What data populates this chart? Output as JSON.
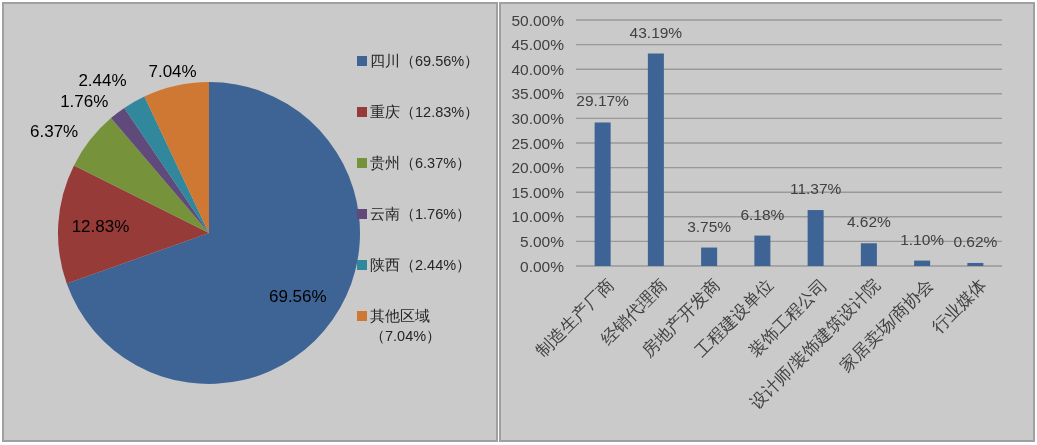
{
  "chart_data": [
    {
      "type": "pie",
      "categories": [
        "四川（69.56%）",
        "重庆（12.83%）",
        "贵州（6.37%）",
        "云南（1.76%）",
        "陕西（2.44%）",
        "其他区域（7.04%）"
      ],
      "values": [
        69.56,
        12.83,
        6.37,
        1.76,
        2.44,
        7.04
      ],
      "colors": [
        "#3e6495",
        "#963b38",
        "#76933c",
        "#5f4a7b",
        "#31879c",
        "#cf7834"
      ],
      "value_labels": [
        "69.56%",
        "12.83%",
        "6.37%",
        "1.76%",
        "2.44%",
        "7.04%"
      ],
      "legend": "right"
    },
    {
      "type": "bar",
      "categories": [
        "制造生产厂商",
        "经销代理商",
        "房地产开发商",
        "工程建设单位",
        "装饰工程公司",
        "设计师/装饰建筑设计院",
        "家居卖场/商协会",
        "行业媒体"
      ],
      "values": [
        29.17,
        43.19,
        3.75,
        6.18,
        11.37,
        4.62,
        1.1,
        0.62
      ],
      "color": "#3e6495",
      "value_labels": [
        "29.17%",
        "43.19%",
        "3.75%",
        "6.18%",
        "11.37%",
        "4.62%",
        "1.10%",
        "0.62%"
      ],
      "ylim": [
        0,
        50
      ],
      "yticks": [
        {
          "value": 0,
          "label": "0.00%"
        },
        {
          "value": 5,
          "label": "5.00%"
        },
        {
          "value": 10,
          "label": "10.00%"
        },
        {
          "value": 15,
          "label": "15.00%"
        },
        {
          "value": 20,
          "label": "20.00%"
        },
        {
          "value": 25,
          "label": "25.00%"
        },
        {
          "value": 30,
          "label": "30.00%"
        },
        {
          "value": 35,
          "label": "35.00%"
        },
        {
          "value": 40,
          "label": "40.00%"
        },
        {
          "value": 45,
          "label": "45.00%"
        },
        {
          "value": 50,
          "label": "50.00%"
        }
      ],
      "grid": "y"
    }
  ]
}
